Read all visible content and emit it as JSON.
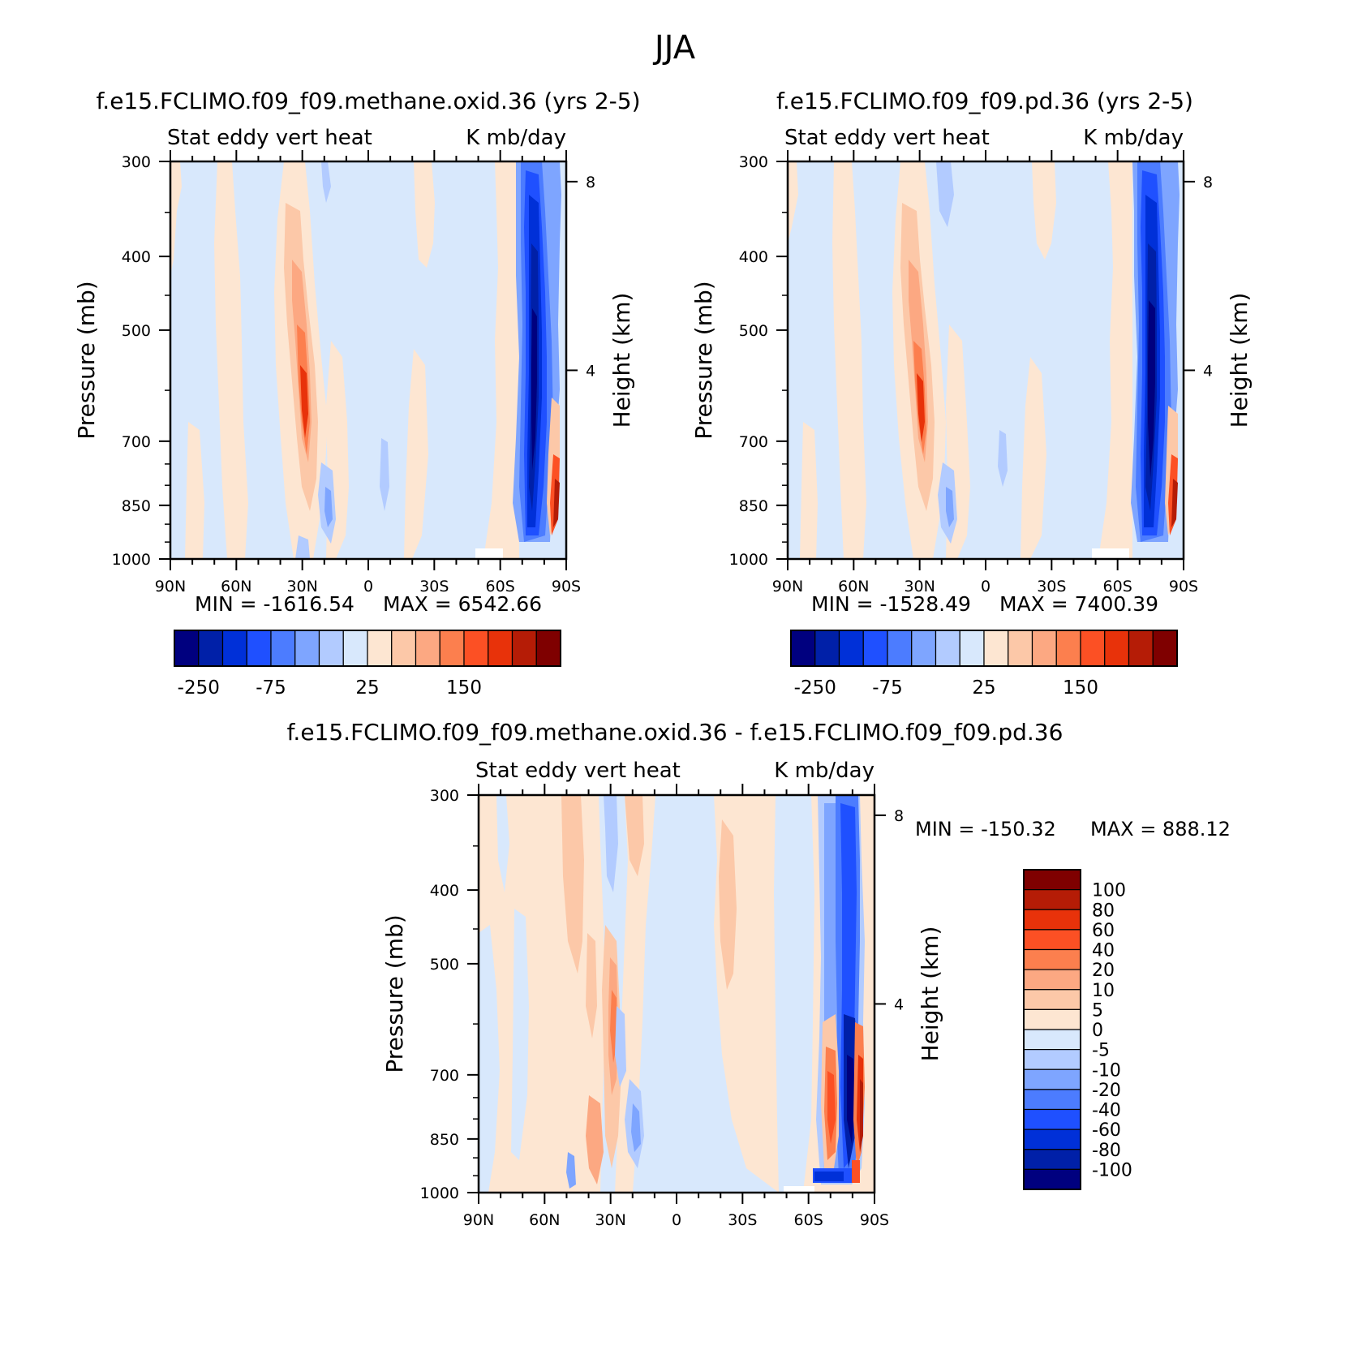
{
  "figure_title": "JJA",
  "colors": {
    "seq16": [
      "#00007f",
      "#0020a8",
      "#0030d8",
      "#1f50ff",
      "#4c7cff",
      "#7ea5ff",
      "#b2cbff",
      "#d8e8fc",
      "#fde6d2",
      "#fcc8a8",
      "#fca882",
      "#fc7f4e",
      "#fc5024",
      "#e8320a",
      "#b51c06",
      "#7f0000"
    ],
    "seq14": [
      "#00007f",
      "#0020a8",
      "#0030d8",
      "#1f50ff",
      "#4c7cff",
      "#7ea5ff",
      "#b2cbff",
      "#d8e8fc",
      "#fde6d2",
      "#fcc8a8",
      "#fc7f4e",
      "#fc5024",
      "#e8320a",
      "#b51c06",
      "#7f0000"
    ]
  },
  "chart_data": [
    {
      "id": "p1",
      "type": "heatmap",
      "title": "f.e15.FCLIMO.f09_f09.methane.oxid.36 (yrs 2-5)",
      "left_label": "Stat eddy vert heat",
      "right_label": "K mb/day",
      "ylabel": "Pressure (mb)",
      "y2label": "Height (km)",
      "x_ticks": [
        "90N",
        "60N",
        "30N",
        "0",
        "30S",
        "60S",
        "90S"
      ],
      "y_ticks": [
        300,
        400,
        500,
        700,
        850,
        1000
      ],
      "y2_ticks": [
        8,
        4
      ],
      "min_label": "MIN = -1616.54",
      "max_label": "MAX = 6542.66",
      "stats": {
        "min": -1616.54,
        "max": 6542.66
      },
      "colorbar_labels": [
        "-250",
        "-75",
        "25",
        "150"
      ]
    },
    {
      "id": "p2",
      "type": "heatmap",
      "title": "f.e15.FCLIMO.f09_f09.pd.36 (yrs 2-5)",
      "left_label": "Stat eddy vert heat",
      "right_label": "K mb/day",
      "ylabel": "Pressure (mb)",
      "y2label": "Height (km)",
      "x_ticks": [
        "90N",
        "60N",
        "30N",
        "0",
        "30S",
        "60S",
        "90S"
      ],
      "y_ticks": [
        300,
        400,
        500,
        700,
        850,
        1000
      ],
      "y2_ticks": [
        8,
        4
      ],
      "min_label": "MIN = -1528.49",
      "max_label": "MAX = 7400.39",
      "stats": {
        "min": -1528.49,
        "max": 7400.39
      },
      "colorbar_labels": [
        "-250",
        "-75",
        "25",
        "150"
      ]
    },
    {
      "id": "p3",
      "type": "heatmap",
      "title": "f.e15.FCLIMO.f09_f09.methane.oxid.36 - f.e15.FCLIMO.f09_f09.pd.36",
      "left_label": "Stat eddy vert heat",
      "right_label": "K mb/day",
      "ylabel": "Pressure (mb)",
      "y2label": "Height (km)",
      "x_ticks": [
        "90N",
        "60N",
        "30N",
        "0",
        "30S",
        "60S",
        "90S"
      ],
      "y_ticks": [
        300,
        400,
        500,
        700,
        850,
        1000
      ],
      "y2_ticks": [
        8,
        4
      ],
      "min_label": "MIN = -150.32",
      "max_label": "MAX = 888.12",
      "stats": {
        "min": -150.32,
        "max": 888.12
      },
      "colorbar_labels": [
        "100",
        "80",
        "60",
        "40",
        "20",
        "10",
        "5",
        "0",
        "-5",
        "-10",
        "-20",
        "-40",
        "-60",
        "-80",
        "-100"
      ]
    }
  ]
}
